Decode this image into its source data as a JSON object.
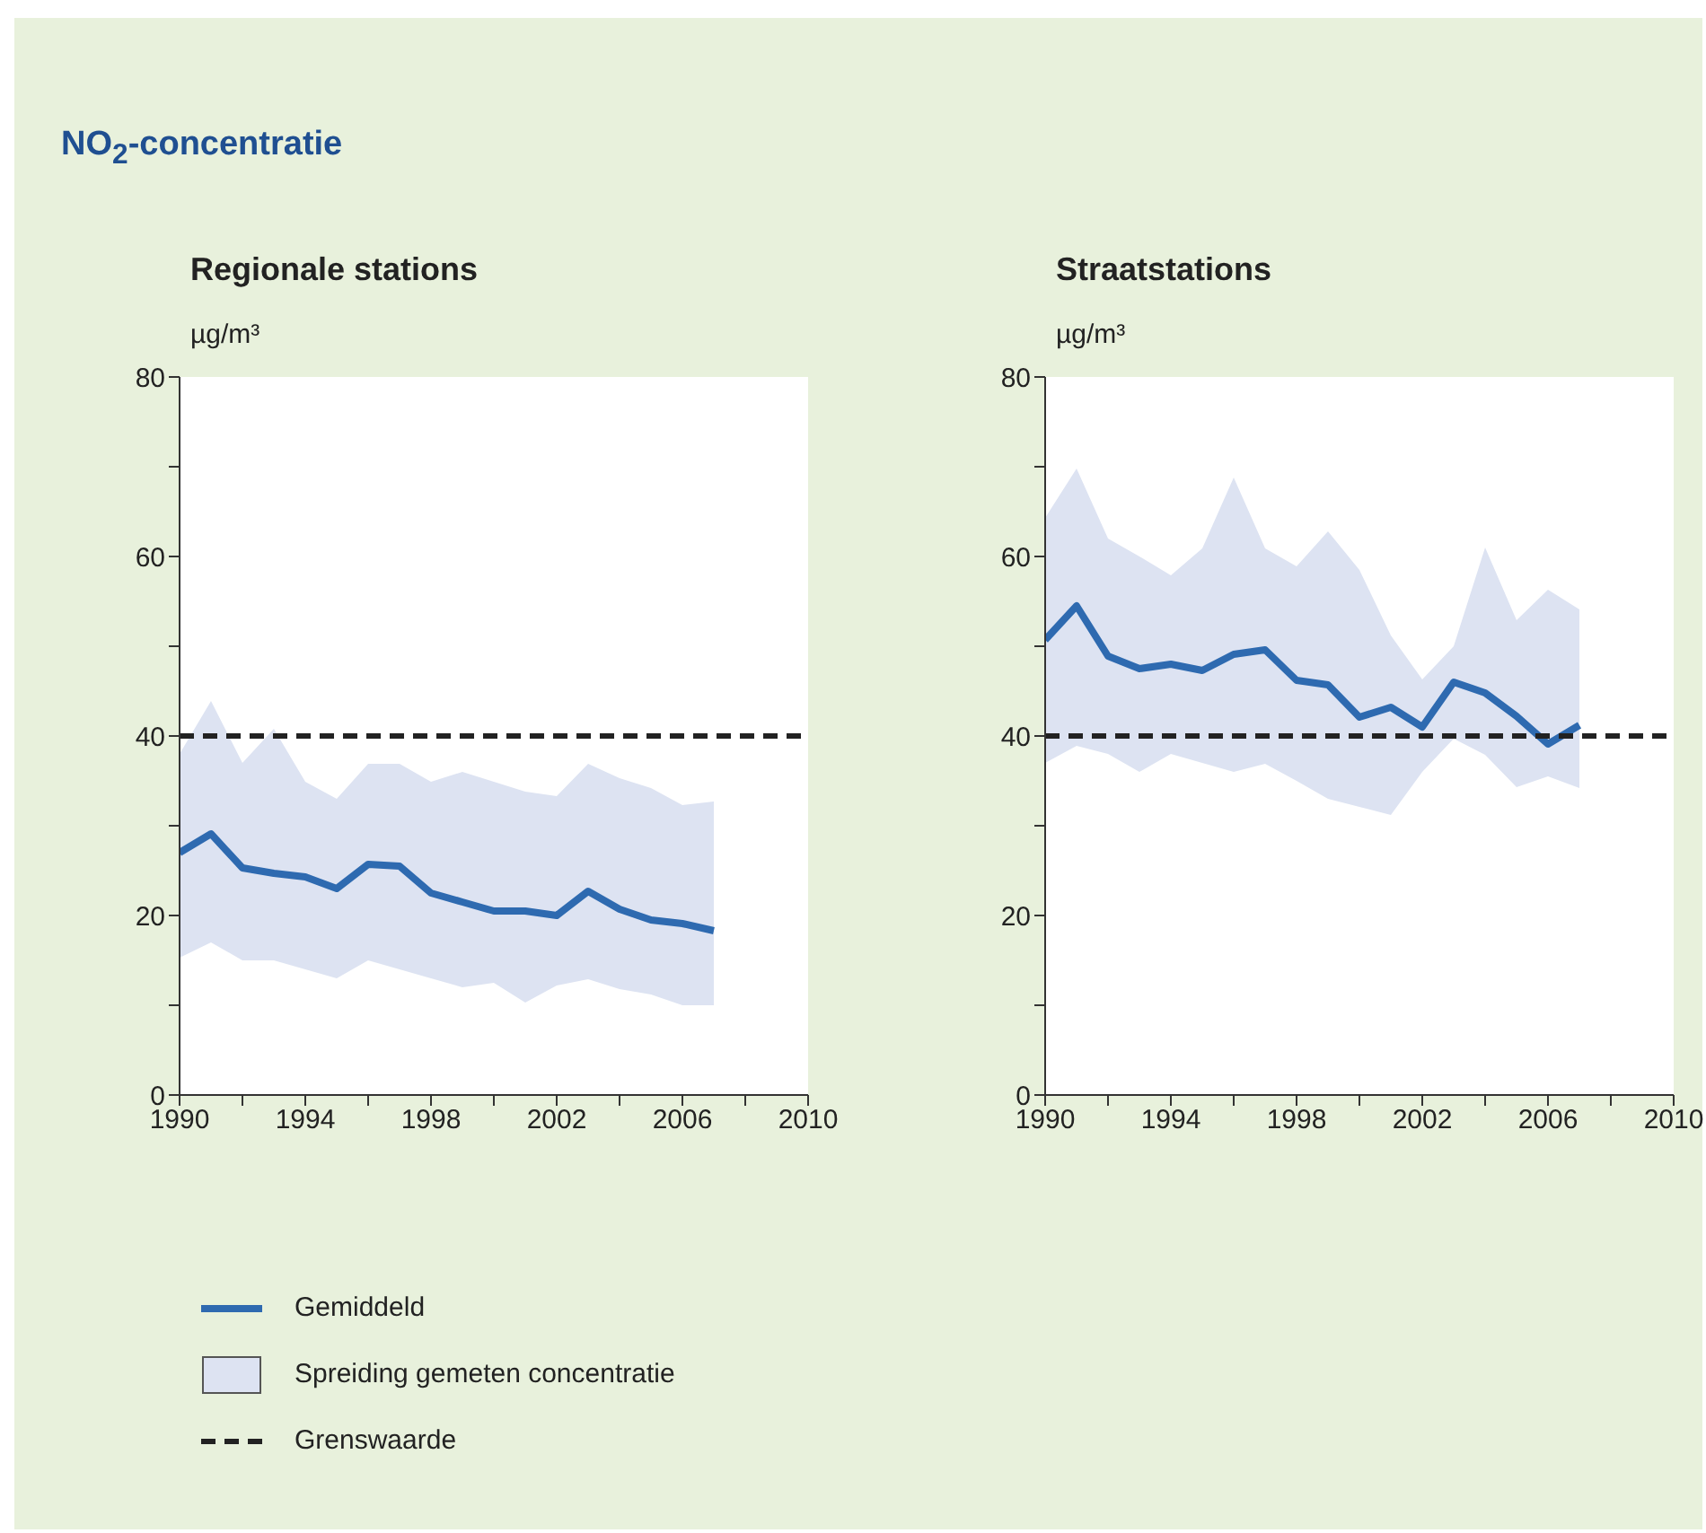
{
  "chart_data": [
    {
      "type": "line",
      "title": "NO$_{2}$-concentratie",
      "subtitle": "Regionale stations",
      "ylabel": "µg/m³",
      "x": [
        1990,
        1991,
        1992,
        1993,
        1994,
        1995,
        1996,
        1997,
        1998,
        1999,
        2000,
        2001,
        2002,
        2003,
        2004,
        2005,
        2006,
        2007
      ],
      "series": [
        {
          "name": "Gemiddeld",
          "color": "#2e6ab0",
          "values": [
            27,
            29.1,
            25.3,
            24.7,
            24.3,
            23,
            25.7,
            25.5,
            22.5,
            21.5,
            20.5,
            20.5,
            20,
            22.7,
            20.7,
            19.5,
            19.1,
            18.3
          ],
          "lower": [
            15.3,
            17,
            15,
            15,
            14,
            13,
            15,
            14,
            13,
            12,
            12.5,
            10.3,
            12.2,
            12.9,
            11.8,
            11.2,
            10,
            10
          ],
          "upper": [
            38,
            43.9,
            37,
            40.8,
            34.9,
            33,
            36.9,
            36.9,
            34.9,
            36,
            34.9,
            33.8,
            33.3,
            36.9,
            35.3,
            34.2,
            32.3,
            32.7
          ]
        }
      ],
      "annotations": [
        "Spreiding gemeten concentratie"
      ],
      "ref_lines": [
        {
          "axis": "y",
          "value": 40,
          "label": "Grenswaarde",
          "color": "#222222",
          "line_style": "dashed"
        }
      ],
      "xlim": [
        1990,
        2010
      ],
      "xticks": [
        1990,
        {
          "value": 1992,
          "label": null
        },
        1994,
        {
          "value": 1996,
          "label": null
        },
        1998,
        {
          "value": 2000,
          "label": null
        },
        2002,
        {
          "value": 2004,
          "label": null
        },
        2006,
        {
          "value": 2008,
          "label": null
        },
        2010
      ],
      "ylim": [
        0,
        80
      ],
      "yticks": [
        0,
        {
          "value": 10,
          "label": null
        },
        20,
        {
          "value": 30,
          "label": null
        },
        40,
        {
          "value": 50,
          "label": null
        },
        60,
        {
          "value": 70,
          "label": null
        },
        80
      ],
      "grid": false,
      "marker": "none",
      "legend": "bottom"
    },
    {
      "type": "line",
      "subtitle": "Straatstations",
      "ylabel": "µg/m³",
      "x": [
        1990,
        1991,
        1992,
        1993,
        1994,
        1995,
        1996,
        1997,
        1998,
        1999,
        2000,
        2001,
        2002,
        2003,
        2004,
        2005,
        2006,
        2007
      ],
      "series": [
        {
          "color": "#2e6ab0",
          "values": [
            50.7,
            54.5,
            48.9,
            47.5,
            48,
            47.3,
            49.1,
            49.6,
            46.2,
            45.7,
            42.1,
            43.2,
            41,
            46,
            44.8,
            42.2,
            39.1,
            41.2
          ],
          "lower": [
            37,
            38.9,
            38,
            36,
            38,
            37,
            36,
            36.9,
            35,
            33,
            32.1,
            31.2,
            36,
            39.7,
            37.9,
            34.3,
            35.5,
            34.2
          ],
          "upper": [
            64.3,
            69.8,
            62,
            60,
            57.9,
            60.9,
            68.8,
            60.9,
            58.9,
            62.8,
            58.5,
            51.2,
            46.3,
            50,
            61,
            52.9,
            56.3,
            54.1
          ]
        }
      ],
      "ref_lines": [
        {
          "axis": "y",
          "value": 40,
          "color": "#222222",
          "line_style": "dashed"
        }
      ],
      "xlim": [
        1990,
        2010
      ],
      "xticks": [
        1990,
        {
          "value": 1992,
          "label": null
        },
        1994,
        {
          "value": 1996,
          "label": null
        },
        1998,
        {
          "value": 2000,
          "label": null
        },
        2002,
        {
          "value": 2004,
          "label": null
        },
        2006,
        {
          "value": 2008,
          "label": null
        },
        2010
      ],
      "ylim": [
        0,
        80
      ],
      "yticks": [
        0,
        {
          "value": 10,
          "label": null
        },
        20,
        {
          "value": 30,
          "label": null
        },
        40,
        {
          "value": 50,
          "label": null
        },
        60,
        {
          "value": 70,
          "label": null
        },
        80
      ],
      "grid": false,
      "marker": "none"
    }
  ]
}
